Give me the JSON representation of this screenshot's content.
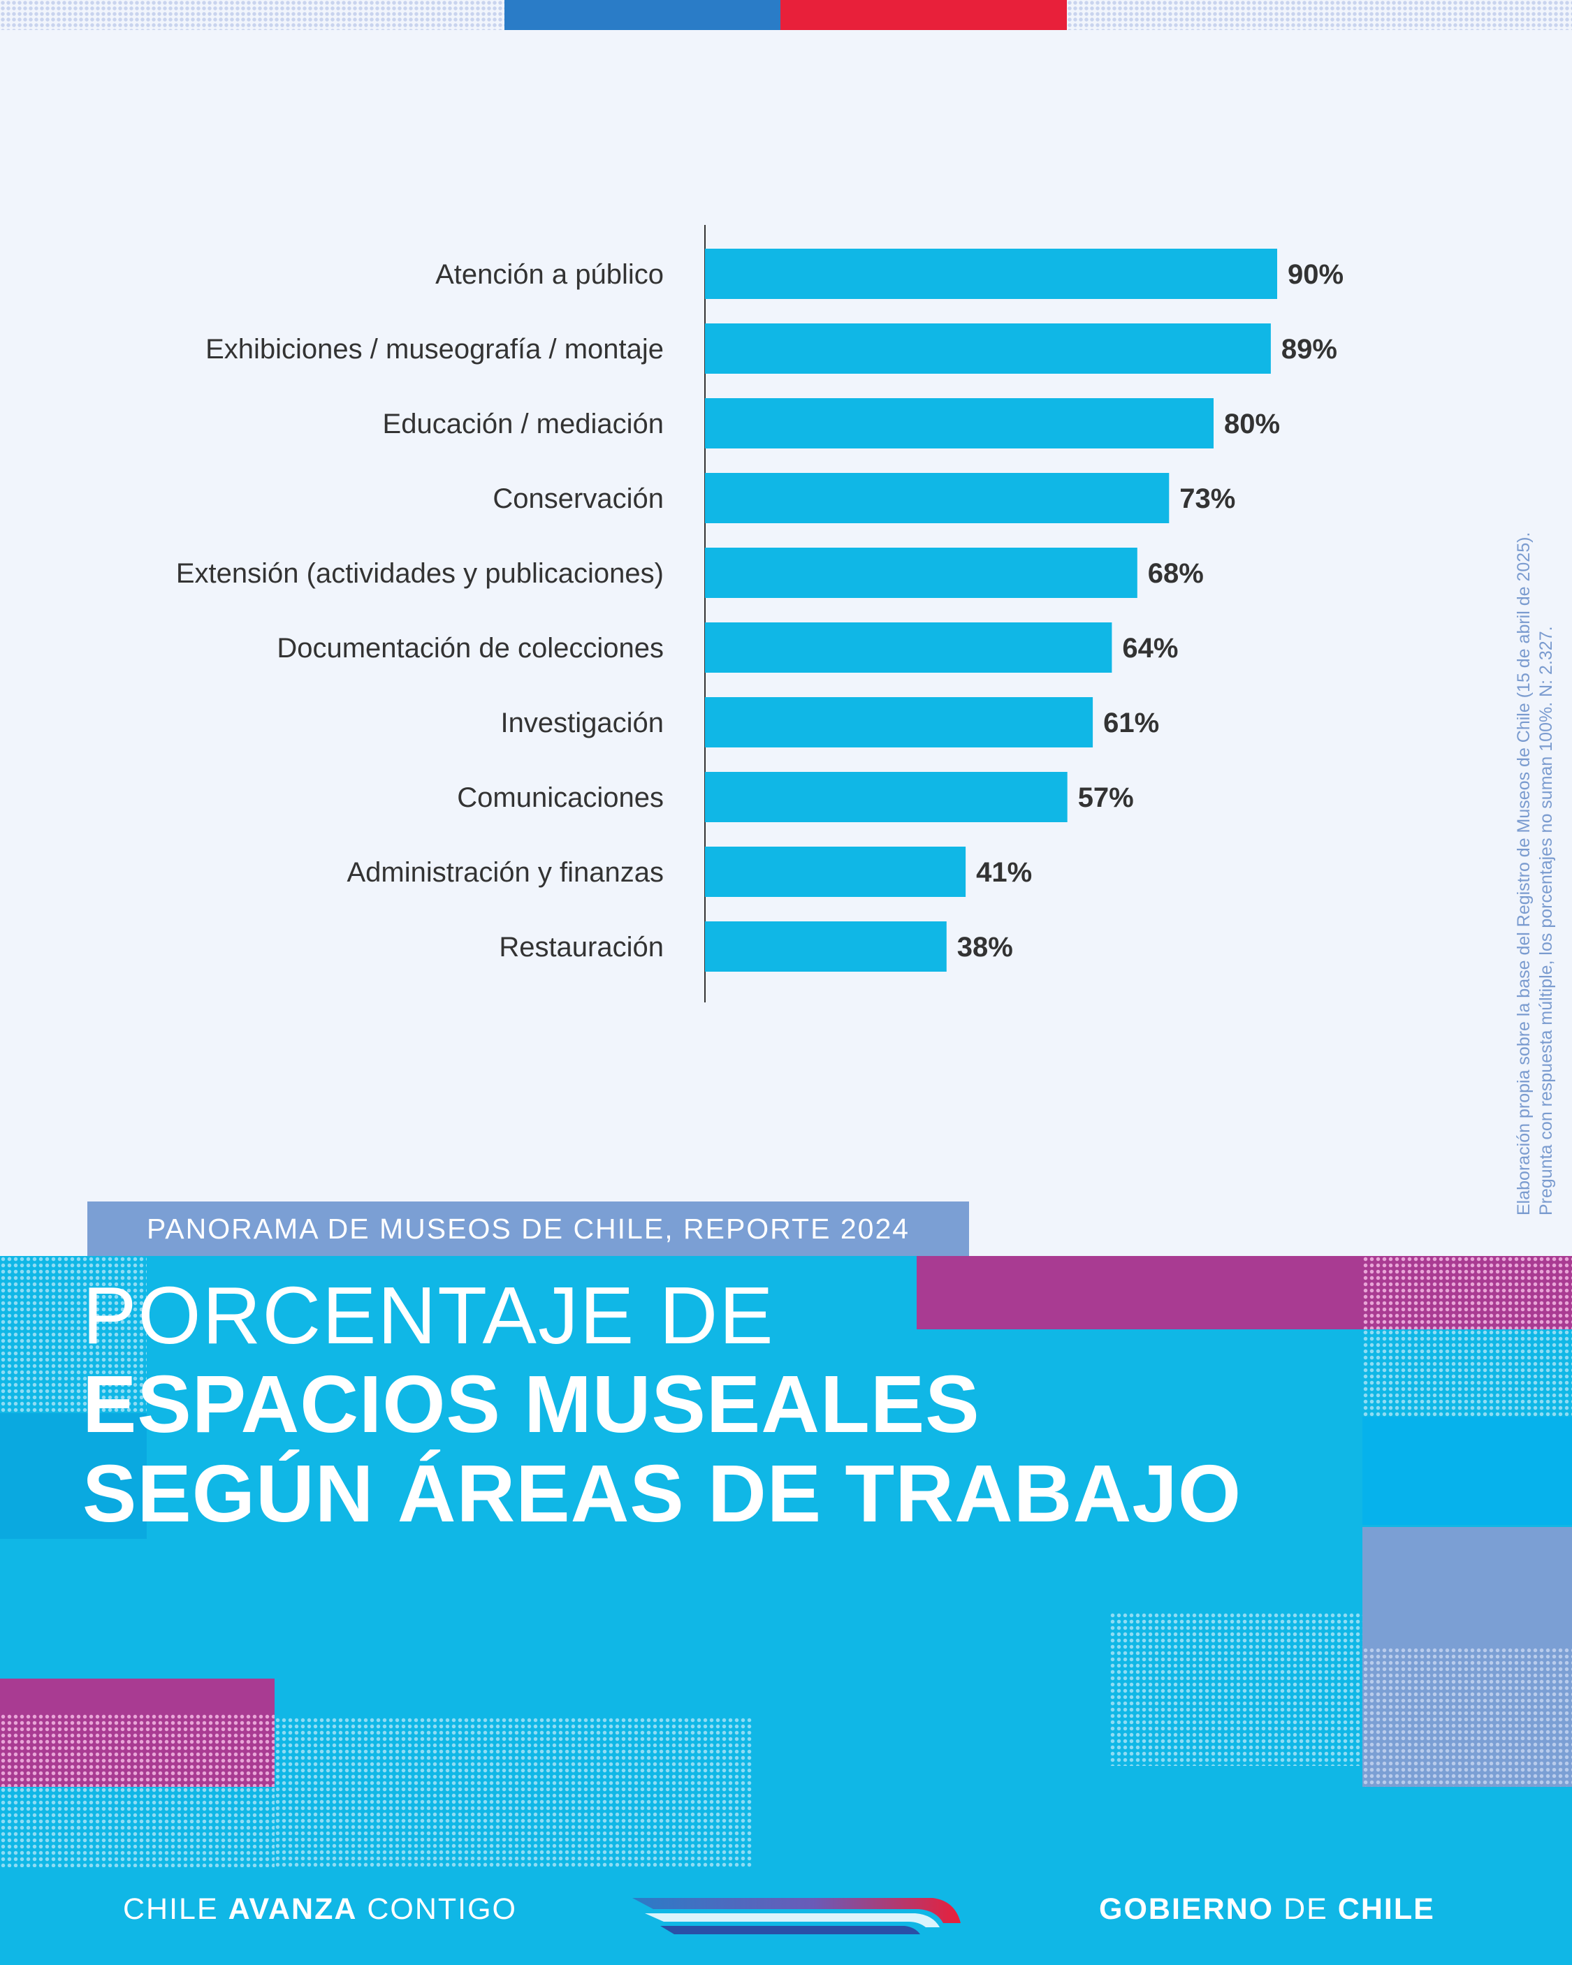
{
  "chart_data": {
    "type": "bar",
    "orientation": "horizontal",
    "categories": [
      "Atención a público",
      "Exhibiciones / museografía / montaje",
      "Educación / mediación",
      "Conservación",
      "Extensión (actividades y publicaciones)",
      "Documentación de colecciones",
      "Investigación",
      "Comunicaciones",
      "Administración y finanzas",
      "Restauración"
    ],
    "values": [
      90,
      89,
      80,
      73,
      68,
      64,
      61,
      57,
      41,
      38
    ],
    "value_labels": [
      "90%",
      "89%",
      "80%",
      "73%",
      "68%",
      "64%",
      "61%",
      "57%",
      "41%",
      "38%"
    ],
    "unit": "%",
    "bar_color": "#10b7e6"
  },
  "source_note": {
    "line1": "Elaboración propia sobre la base del Registro de Museos de Chile (15 de abril de 2025).",
    "line2": "Pregunta con respuesta múltiple, los porcentajes no suman 100%. N: 2.327."
  },
  "report_tag": "PANORAMA DE MUSEOS DE CHILE, REPORTE 2024",
  "title": {
    "line1": "PORCENTAJE DE",
    "line2": "ESPACIOS MUSEALES",
    "line3": "SEGÚN ÁREAS DE TRABAJO"
  },
  "footer": {
    "left_prefix": "CHILE",
    "left_bold": "AVANZA",
    "left_suffix": "CONTIGO",
    "right_bold1": "GOBIERNO",
    "right_mid": "DE",
    "right_bold2": "CHILE"
  },
  "colors": {
    "background": "#f1f5fc",
    "accent_blue": "#2a7cc7",
    "accent_red": "#e8203a",
    "banner_cyan": "#10b7e6",
    "magenta": "#a93b92",
    "lavender": "#7b9fd4"
  }
}
